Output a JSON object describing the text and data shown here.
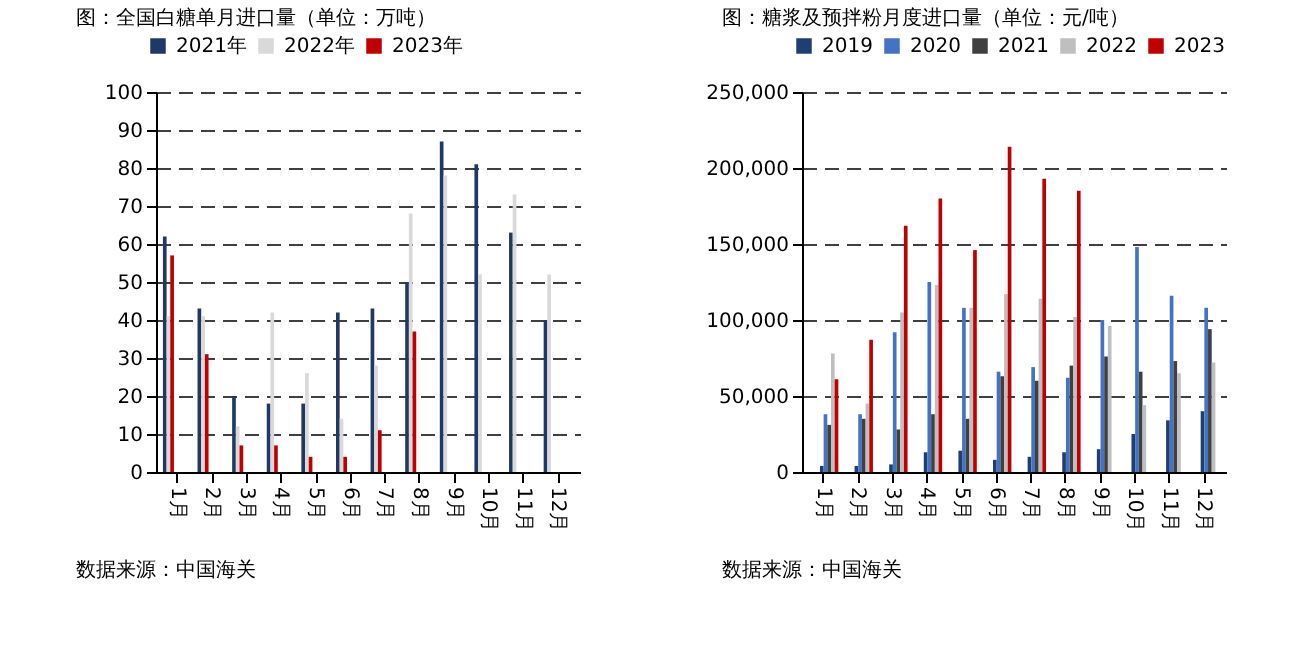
{
  "chart_data": [
    {
      "type": "bar",
      "title": "图：全国白糖单月进口量（单位：万吨）",
      "categories": [
        "1月",
        "2月",
        "3月",
        "4月",
        "5月",
        "6月",
        "7月",
        "8月",
        "9月",
        "10月",
        "11月",
        "12月"
      ],
      "series": [
        {
          "name": "2021年",
          "color": "#1f3864",
          "values": [
            62,
            43,
            20,
            18,
            18,
            42,
            43,
            50,
            87,
            81,
            63,
            40
          ]
        },
        {
          "name": "2022年",
          "color": "#d9d9d9",
          "values": [
            41,
            41,
            12,
            42,
            26,
            14,
            28,
            68,
            78,
            52,
            73,
            52
          ]
        },
        {
          "name": "2023年",
          "color": "#c00000",
          "values": [
            57,
            31,
            7,
            7,
            4,
            4,
            11,
            37,
            null,
            null,
            null,
            null
          ]
        }
      ],
      "ylim": [
        0,
        100
      ],
      "yticks": [
        0,
        10,
        20,
        30,
        40,
        50,
        60,
        70,
        80,
        90,
        100
      ],
      "grid": "y",
      "legend": "top",
      "annotations": [
        "数据来源：中国海关"
      ]
    },
    {
      "type": "bar",
      "title": "图：糖浆及预拌粉月度进口量（单位：元/吨）",
      "categories": [
        "1月",
        "2月",
        "3月",
        "4月",
        "5月",
        "6月",
        "7月",
        "8月",
        "9月",
        "10月",
        "11月",
        "12月"
      ],
      "series": [
        {
          "name": "2019",
          "color": "#1f3f73",
          "values": [
            4000,
            4000,
            5000,
            13000,
            14000,
            8000,
            10000,
            13000,
            15000,
            25000,
            34000,
            40000
          ]
        },
        {
          "name": "2020",
          "color": "#4472c4",
          "values": [
            38000,
            38000,
            92000,
            125000,
            108000,
            66000,
            69000,
            62000,
            100000,
            148000,
            116000,
            108000
          ]
        },
        {
          "name": "2021",
          "color": "#404040",
          "values": [
            31000,
            35000,
            28000,
            38000,
            35000,
            63000,
            60000,
            70000,
            76000,
            66000,
            73000,
            94000
          ]
        },
        {
          "name": "2022",
          "color": "#bfbfbf",
          "values": [
            78000,
            45000,
            105000,
            123000,
            108000,
            117000,
            114000,
            102000,
            96000,
            44000,
            65000,
            72000
          ]
        },
        {
          "name": "2023",
          "color": "#c00000",
          "values": [
            61000,
            87000,
            162000,
            180000,
            146000,
            214000,
            193000,
            185000,
            null,
            null,
            null,
            null
          ]
        }
      ],
      "ylim": [
        0,
        250000
      ],
      "yticks": [
        0,
        {
          "value": 50000,
          "label": "50,000"
        },
        {
          "value": 100000,
          "label": "100,000"
        },
        {
          "value": 150000,
          "label": "150,000"
        },
        {
          "value": 200000,
          "label": "200,000"
        },
        {
          "value": 250000,
          "label": "250,000"
        }
      ],
      "grid": "y",
      "legend": "top",
      "annotations": [
        "数据来源：中国海关"
      ]
    }
  ]
}
